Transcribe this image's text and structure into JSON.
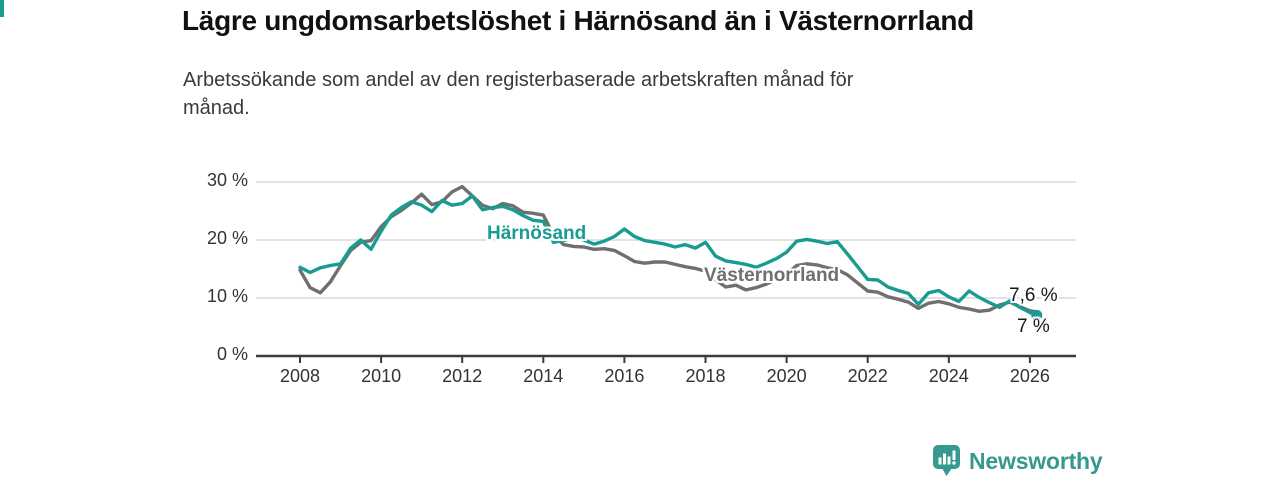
{
  "header": {
    "title": "Lägre ungdomsarbetslöshet i Härnösand än i Västernorrland",
    "subtitle": "Arbetssökande som andel av den registerbaserade arbetskraften månad för månad."
  },
  "chart_data": {
    "type": "line",
    "title": "Lägre ungdomsarbetslöshet i Härnösand än i Västernorrland",
    "subtitle": "Arbetssökande som andel av den registerbaserade arbetskraften månad för månad.",
    "xlabel": "",
    "ylabel": "",
    "unit": "%",
    "ylim": [
      0,
      30
    ],
    "xlim": [
      2006.9,
      2027.1
    ],
    "grid": "horizontal",
    "legend_position": "inline-labels",
    "y_ticks": [
      {
        "value": 30,
        "label": "30 %"
      },
      {
        "value": 20,
        "label": "20 %"
      },
      {
        "value": 10,
        "label": "10 %"
      },
      {
        "value": 0,
        "label": "0 %"
      }
    ],
    "x_ticks": [
      {
        "value": 2008,
        "label": "2008"
      },
      {
        "value": 2010,
        "label": "2010"
      },
      {
        "value": 2012,
        "label": "2012"
      },
      {
        "value": 2014,
        "label": "2014"
      },
      {
        "value": 2016,
        "label": "2016"
      },
      {
        "value": 2018,
        "label": "2018"
      },
      {
        "value": 2020,
        "label": "2020"
      },
      {
        "value": 2022,
        "label": "2022"
      },
      {
        "value": 2024,
        "label": "2024"
      },
      {
        "value": 2026,
        "label": "2026"
      }
    ],
    "x": [
      2008,
      2008.25,
      2008.5,
      2008.75,
      2009,
      2009.25,
      2009.5,
      2009.75,
      2010,
      2010.25,
      2010.5,
      2010.75,
      2011,
      2011.25,
      2011.5,
      2011.75,
      2012,
      2012.25,
      2012.5,
      2012.75,
      2013,
      2013.25,
      2013.5,
      2013.75,
      2014,
      2014.25,
      2014.5,
      2014.75,
      2015,
      2015.25,
      2015.5,
      2015.75,
      2016,
      2016.25,
      2016.5,
      2016.75,
      2017,
      2017.25,
      2017.5,
      2017.75,
      2018,
      2018.25,
      2018.5,
      2018.75,
      2019,
      2019.25,
      2019.5,
      2019.75,
      2020,
      2020.25,
      2020.5,
      2020.75,
      2021,
      2021.25,
      2021.5,
      2021.75,
      2022,
      2022.25,
      2022.5,
      2022.75,
      2023,
      2023.25,
      2023.5,
      2023.75,
      2024,
      2024.25,
      2024.5,
      2024.75,
      2025,
      2025.25,
      2025.5,
      2025.75,
      2026,
      2026.17
    ],
    "series": [
      {
        "name": "Västernorrland",
        "color": "#6f6f6f",
        "end_label": "7,6 %",
        "end_value": 7.6,
        "end_dot": false,
        "values": [
          14.8,
          11.8,
          10.9,
          12.8,
          15.6,
          18.2,
          19.6,
          19.9,
          22.3,
          24.0,
          25.1,
          26.4,
          27.9,
          26.1,
          26.6,
          28.3,
          29.2,
          27.6,
          26.0,
          25.4,
          26.3,
          25.9,
          24.8,
          24.6,
          24.3,
          20.9,
          19.2,
          18.9,
          18.8,
          18.4,
          18.5,
          18.2,
          17.3,
          16.3,
          16.0,
          16.2,
          16.2,
          15.8,
          15.4,
          15.1,
          14.6,
          13.1,
          11.9,
          12.2,
          11.4,
          11.8,
          12.4,
          13.2,
          14.1,
          15.6,
          15.9,
          15.7,
          15.2,
          14.9,
          14.0,
          12.6,
          11.2,
          11.0,
          10.2,
          9.8,
          9.3,
          8.2,
          9.1,
          9.4,
          9.0,
          8.4,
          8.1,
          7.7,
          7.9,
          8.8,
          9.3,
          8.5,
          7.8,
          7.6
        ]
      },
      {
        "name": "Härnösand",
        "color": "#189c92",
        "end_label": "7 %",
        "end_value": 7.0,
        "end_dot": true,
        "values": [
          15.3,
          14.4,
          15.2,
          15.6,
          15.9,
          18.6,
          20.0,
          18.4,
          21.5,
          24.3,
          25.6,
          26.6,
          26.0,
          24.9,
          26.8,
          26.0,
          26.3,
          27.6,
          25.2,
          25.6,
          25.8,
          25.2,
          24.2,
          23.4,
          23.2,
          19.6,
          19.9,
          20.4,
          20.0,
          19.3,
          19.8,
          20.6,
          21.9,
          20.6,
          19.9,
          19.6,
          19.3,
          18.8,
          19.2,
          18.6,
          19.6,
          17.2,
          16.4,
          16.1,
          15.8,
          15.3,
          16.0,
          16.8,
          17.9,
          19.8,
          20.1,
          19.8,
          19.4,
          19.7,
          17.6,
          15.4,
          13.2,
          13.1,
          11.9,
          11.3,
          10.8,
          8.9,
          10.9,
          11.3,
          10.2,
          9.4,
          11.2,
          10.1,
          9.2,
          8.4,
          9.5,
          8.4,
          7.5,
          7.0
        ]
      }
    ],
    "colors": {
      "grid": "#d9d9d9",
      "axis": "#3b3b3b",
      "tick_text": "#333333",
      "end_label_text": "#1a1a1a"
    }
  },
  "branding": {
    "brand_name": "Newsworthy",
    "brand_color": "#35998f",
    "logo_icon": "bar-chart-badge"
  }
}
